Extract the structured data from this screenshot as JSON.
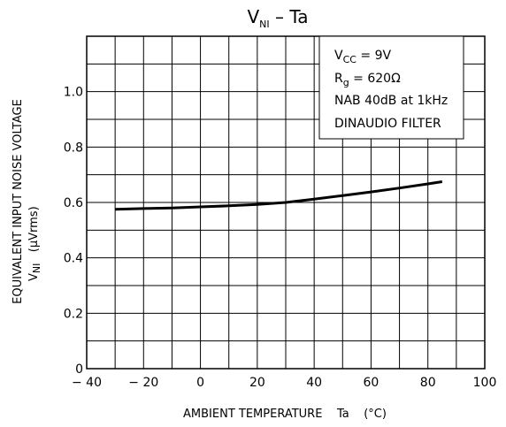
{
  "chart_data": {
    "type": "line",
    "title": {
      "main": "V",
      "sub": "NI",
      "rest": " – Ta"
    },
    "xlabel": "AMBIENT TEMPERATURE    Ta    (°C)",
    "ylabel_line1": "EQUIVALENT INPUT NOISE VOLTAGE",
    "ylabel_line2": {
      "main": "V",
      "sub": "NI",
      "rest": "   (μVrms)"
    },
    "xlim": [
      -40,
      100
    ],
    "ylim": [
      0,
      1.2
    ],
    "x_ticks": [
      -40,
      -20,
      0,
      20,
      40,
      60,
      80,
      100
    ],
    "x_tick_labels": [
      "− 40",
      "− 20",
      "0",
      "20",
      "40",
      "60",
      "80",
      "100"
    ],
    "y_ticks": [
      0,
      0.2,
      0.4,
      0.6,
      0.8,
      1.0
    ],
    "y_tick_labels": [
      "0",
      "0.2",
      "0.4",
      "0.6",
      "0.8",
      "1.0"
    ],
    "grid": true,
    "series": [
      {
        "x": [
          -30,
          -20,
          -10,
          0,
          10,
          20,
          30,
          40,
          50,
          60,
          70,
          80,
          85
        ],
        "y": [
          0.575,
          0.578,
          0.58,
          0.584,
          0.588,
          0.593,
          0.6,
          0.612,
          0.625,
          0.638,
          0.652,
          0.667,
          0.675
        ]
      }
    ],
    "annotation": {
      "vcc": {
        "main": "V",
        "sub": "CC",
        "rest": " = 9V"
      },
      "rg": {
        "main": "R",
        "sub": "g",
        "rest": " = 620Ω"
      },
      "line3": "NAB  40dB  at  1kHz",
      "line4": "DINAUDIO  FILTER"
    },
    "colors": {
      "line": "#000000",
      "grid": "#000000",
      "background": "#ffffff"
    }
  }
}
